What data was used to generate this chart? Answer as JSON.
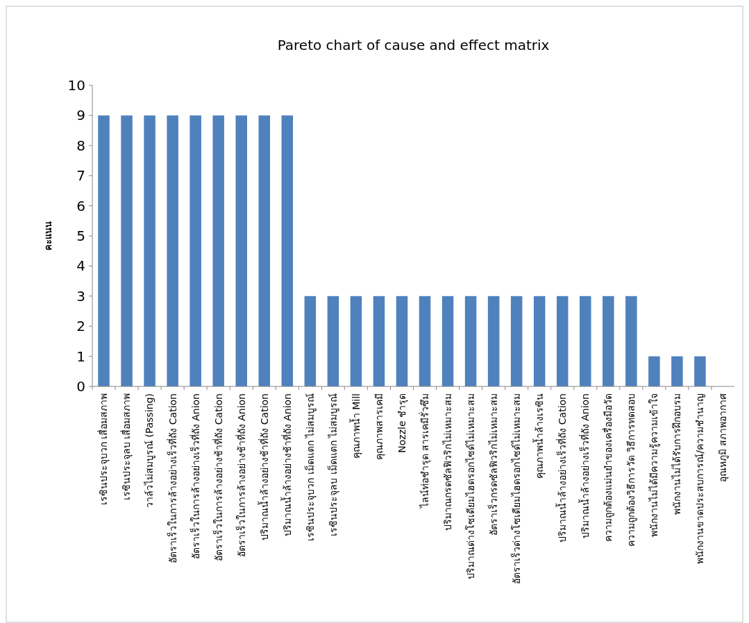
{
  "chart_data": {
    "type": "bar",
    "title": "Pareto chart of cause and effect matrix",
    "ylabel": "คะแนน",
    "categories": [
      "เรซินประจุบวก เสื่อมสภาพ",
      "เรซินประจุลบ เสื่อมสภาพ",
      "วาล์วไม่สมบูรณ์ (Passing)",
      "อัตราเร็วในการล้างอย่างเร็วที่ถัง Cation",
      "อัตราเร็วในการล้างอย่างเร็วที่ถัง Anion",
      "อัตราเร็วในการล้างอย่างช้าที่ถัง Cation",
      "อัตราเร็วในการล้างอย่างช้าที่ถัง Anion",
      "ปริมาณน้ำล้างอย่างช้าที่ถัง Cation",
      "ปริมาณน้ำล้างอย่างช้าที่ถัง Anion",
      "เรซินประจุบวก เม็ดแตก ไม่สมบูรณ์",
      "เรซินประจุลบ เม็ดแตก ไม่สมบูรณ์",
      "คุณภาพน้ำ Mill",
      "คุณภาพสารเคมี",
      "Nozzle ชำรุด",
      "ไลน์ท่อชำรุด สารเคมีรั่วซึม",
      "ปริมาณกรดซัลฟิวริกไม่เหมาะสม",
      "ปริมาณด่างโซเดียมไฮดรอกไซด์ไม่เหมาะสม",
      "อัตราเร็วกรดซัลฟิวริกไม่เหมาะสม",
      "อัตราเร็วด่างโซเดียมไฮดรอกไซด์ไม่เหมาะสม",
      "คุณภาพน้ำล้างเรซิน",
      "ปริมาณน้ำล้างอย่างเร็วที่ถัง Cation",
      "ปริมาณน้ำล้างอย่างเร็วที่ถัง Anion",
      "ความถูกต้องแม่นยำของเครื่องมือวัด",
      "ความถูกต้องวิธีการวัด วิธีการทดสอบ",
      "พนักงานไม่ได้มีความรู้ความเข้าใจ",
      "พนักงานไม่ได้รับการฝึกอบรม",
      "พนักงานขาดประสบการณ์/ความชำนาญ",
      "อุณหภูมิ สภาพอากาศ"
    ],
    "values": [
      9,
      9,
      9,
      9,
      9,
      9,
      9,
      9,
      9,
      3,
      3,
      3,
      3,
      3,
      3,
      3,
      3,
      3,
      3,
      3,
      3,
      3,
      3,
      3,
      1,
      1,
      1,
      0
    ],
    "color": "#4f81bd",
    "ylim": [
      0,
      10
    ],
    "yticks": [
      0,
      1,
      2,
      3,
      4,
      5,
      6,
      7,
      8,
      9,
      10
    ],
    "grid": false
  }
}
